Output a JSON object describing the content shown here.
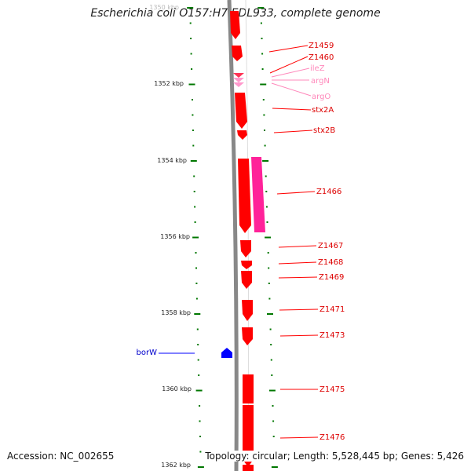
{
  "title": "Escherichia coli O157:H7 EDL933, complete genome",
  "footer": {
    "accession": "Accession: NC_002655",
    "summary": "Topology: circular; Length: 5,528,445 bp; Genes: 5,426"
  },
  "colors": {
    "gene": "#ff0000",
    "rna": "#ff33aa",
    "trna": "#ff99cc",
    "blue_feature": "#0000ff",
    "tick": "#007700",
    "backbone": "#888888"
  },
  "axis": {
    "tick_labels": [
      "1350 kbp",
      "1352 kbp",
      "1354 kbp",
      "1356 kbp",
      "1358 kbp",
      "1360 kbp",
      "1362 kbp"
    ]
  },
  "features": [
    {
      "name": "Z1459",
      "kind": "gene"
    },
    {
      "name": "Z1460",
      "kind": "gene"
    },
    {
      "name": "ileZ",
      "kind": "trna"
    },
    {
      "name": "argN",
      "kind": "trna"
    },
    {
      "name": "argO",
      "kind": "trna"
    },
    {
      "name": "stx2A",
      "kind": "gene"
    },
    {
      "name": "stx2B",
      "kind": "gene"
    },
    {
      "name": "Z1466",
      "kind": "gene"
    },
    {
      "name": "Z1467",
      "kind": "gene"
    },
    {
      "name": "Z1468",
      "kind": "gene"
    },
    {
      "name": "Z1469",
      "kind": "gene"
    },
    {
      "name": "Z1471",
      "kind": "gene"
    },
    {
      "name": "Z1473",
      "kind": "gene"
    },
    {
      "name": "borW",
      "kind": "blue"
    },
    {
      "name": "Z1475",
      "kind": "gene"
    },
    {
      "name": "Z1476",
      "kind": "gene"
    }
  ]
}
